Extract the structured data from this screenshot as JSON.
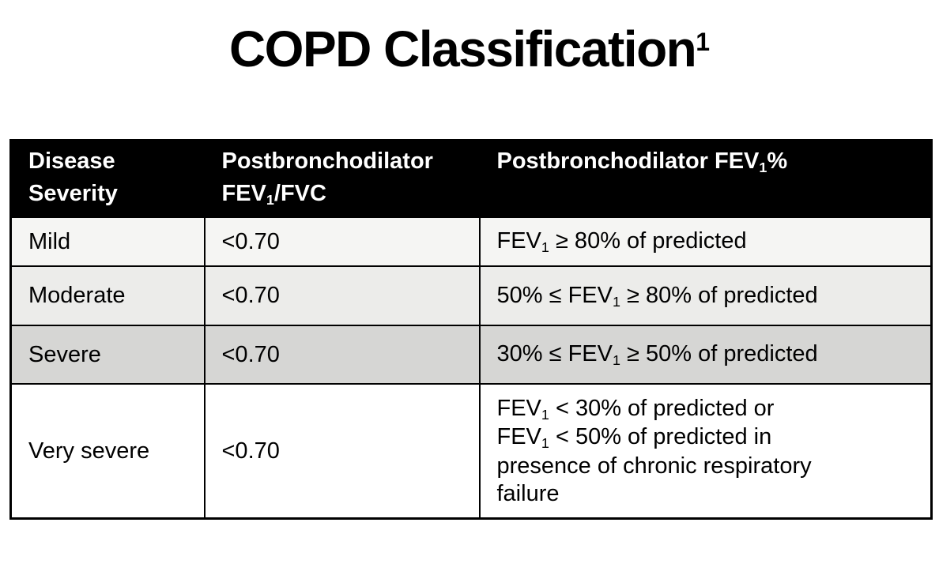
{
  "page": {
    "background": "#ffffff"
  },
  "title": {
    "text": "COPD Classification1",
    "segments": [
      {
        "t": "COPD Classification"
      },
      {
        "t": "1",
        "sup": true
      }
    ]
  },
  "table": {
    "outer_border_color": "#000000",
    "grid_color": "#000000",
    "header": {
      "background": "#000000",
      "text_color": "#ffffff",
      "columns": [
        {
          "label": "Disease Severity",
          "segments": [
            {
              "t": "Disease"
            },
            {
              "br": true
            },
            {
              "t": "Severity"
            }
          ]
        },
        {
          "label": "Postbronchodilator FEV₁/FVC",
          "segments": [
            {
              "t": "Postbronchodilator"
            },
            {
              "br": true
            },
            {
              "t": "FEV"
            },
            {
              "t": "1",
              "sub": true
            },
            {
              "t": "/FVC"
            }
          ]
        },
        {
          "label": "Postbronchodilator FEV₁%",
          "segments": [
            {
              "t": "Postbronchodilator FEV"
            },
            {
              "t": "1",
              "sub": true
            },
            {
              "t": "%"
            }
          ]
        }
      ]
    },
    "rows": [
      {
        "background": "#f5f5f3",
        "severity_text": "Mild",
        "fev1_fvc_text": "<0.70",
        "fev1_pct_text": "FEV₁ ≥ 80% of predicted",
        "cells": [
          [
            {
              "t": "Mild"
            }
          ],
          [
            {
              "t": "<0.70"
            }
          ],
          [
            {
              "t": "FEV"
            },
            {
              "t": "1",
              "sub": true
            },
            {
              "t": " ≥ 80% of predicted"
            }
          ]
        ]
      },
      {
        "background": "#ececea",
        "severity_text": "Moderate",
        "fev1_fvc_text": "<0.70",
        "fev1_pct_text": "50% ≤ FEV₁ ≥ 80% of predicted",
        "cells": [
          [
            {
              "t": "Moderate"
            }
          ],
          [
            {
              "t": "<0.70"
            }
          ],
          [
            {
              "t": "50% ≤ FEV"
            },
            {
              "t": "1",
              "sub": true
            },
            {
              "t": " ≥ 80% of predicted"
            }
          ]
        ]
      },
      {
        "background": "#d6d6d4",
        "severity_text": "Severe",
        "fev1_fvc_text": "<0.70",
        "fev1_pct_text": "30% ≤ FEV₁ ≥ 50% of predicted",
        "cells": [
          [
            {
              "t": "Severe"
            }
          ],
          [
            {
              "t": "<0.70"
            }
          ],
          [
            {
              "t": "30% ≤ FEV"
            },
            {
              "t": "1",
              "sub": true
            },
            {
              "t": " ≥ 50% of predicted"
            }
          ]
        ]
      },
      {
        "background": "#ffffff",
        "severity_text": "Very severe",
        "fev1_fvc_text": "<0.70",
        "fev1_pct_text": "FEV₁ < 30% of predicted or FEV₁ < 50% of predicted in presence of chronic respiratory failure",
        "cells": [
          [
            {
              "t": "Very severe"
            }
          ],
          [
            {
              "t": "<0.70"
            }
          ],
          [
            {
              "t": "FEV"
            },
            {
              "t": "1",
              "sub": true
            },
            {
              "t": " < 30% of predicted or"
            },
            {
              "br": true
            },
            {
              "t": "FEV"
            },
            {
              "t": "1",
              "sub": true
            },
            {
              "t": " < 50% of predicted in"
            },
            {
              "br": true
            },
            {
              "t": "presence of chronic respiratory"
            },
            {
              "br": true
            },
            {
              "t": "failure"
            }
          ]
        ]
      }
    ]
  },
  "chart_data": {
    "type": "table",
    "title": "COPD Classification1",
    "columns": [
      "Disease Severity",
      "Postbronchodilator FEV₁/FVC",
      "Postbronchodilator FEV₁%"
    ],
    "rows": [
      [
        "Mild",
        "<0.70",
        "FEV₁ ≥ 80% of predicted"
      ],
      [
        "Moderate",
        "<0.70",
        "50% ≤ FEV₁ ≥ 80% of predicted"
      ],
      [
        "Severe",
        "<0.70",
        "30% ≤ FEV₁ ≥ 50% of predicted"
      ],
      [
        "Very severe",
        "<0.70",
        "FEV₁ < 30% of predicted or FEV₁ < 50% of predicted in presence of chronic respiratory failure"
      ]
    ]
  }
}
